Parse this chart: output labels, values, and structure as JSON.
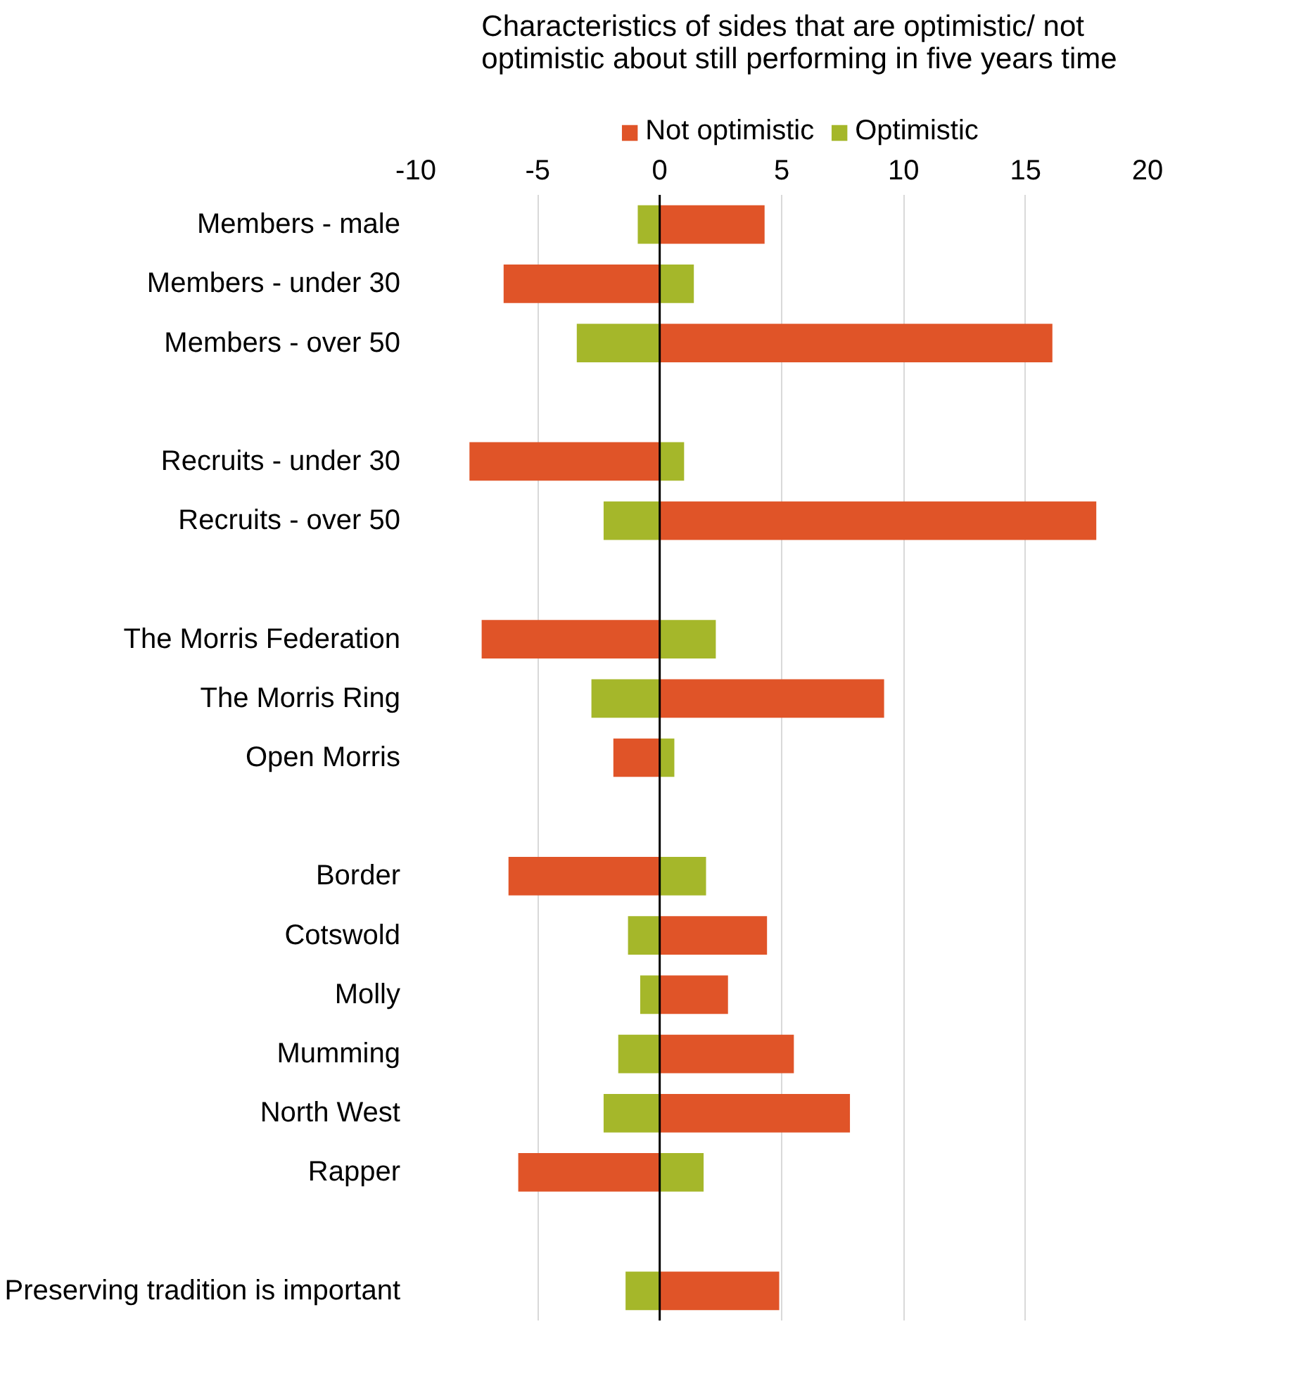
{
  "chart_data": {
    "type": "bar",
    "orientation": "horizontal",
    "title": "Characteristics of sides that are optimistic/ not\noptimistic about still performing in five years time",
    "categories": [
      "Members - male",
      "Members - under 30",
      "Members - over 50",
      null,
      "Recruits - under 30",
      "Recruits - over 50",
      null,
      "The Morris Federation",
      "The Morris Ring",
      "Open Morris",
      null,
      "Border",
      "Cotswold",
      "Molly",
      "Mumming",
      "North West",
      "Rapper",
      null,
      "Preserving tradition is important"
    ],
    "series": [
      {
        "name": "Not optimistic",
        "color": "#e05428",
        "values": [
          4.3,
          -6.4,
          16.1,
          null,
          -7.8,
          17.9,
          null,
          -7.3,
          9.2,
          -1.9,
          null,
          -6.2,
          4.4,
          2.8,
          5.5,
          7.8,
          -5.8,
          null,
          4.9
        ]
      },
      {
        "name": "Optimistic",
        "color": "#a5b72a",
        "values": [
          -0.9,
          1.4,
          -3.4,
          null,
          1.0,
          -2.3,
          null,
          2.3,
          -2.8,
          0.6,
          null,
          1.9,
          -1.3,
          -0.8,
          -1.7,
          -2.3,
          1.8,
          null,
          -1.4
        ]
      }
    ],
    "stacked": true,
    "xlim": [
      -10,
      20
    ],
    "xticks": [
      -10,
      -5,
      0,
      5,
      10,
      15,
      20
    ],
    "grid": "x",
    "legend": "top",
    "ref_lines": [
      {
        "axis": "x",
        "value": 0,
        "color": "#000000"
      }
    ]
  }
}
